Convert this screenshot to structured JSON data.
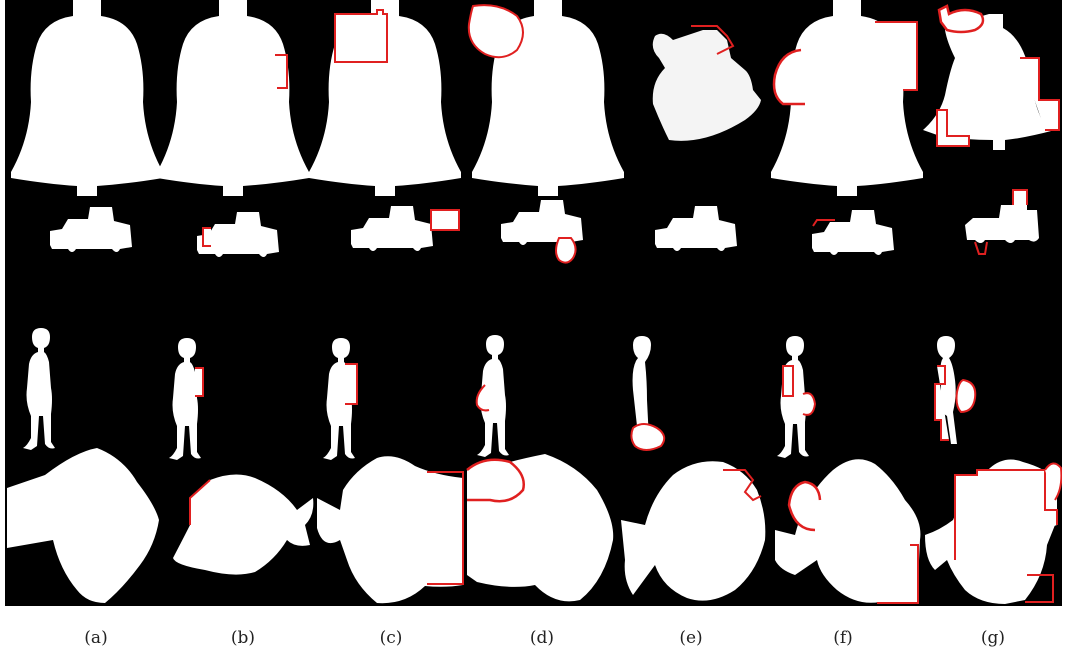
{
  "figure": {
    "background": "#000000",
    "shape_fill": "#ffffff",
    "outline_color": "#e02020",
    "rows": [
      "bell",
      "truck",
      "child",
      "fish"
    ]
  },
  "captions": [
    "(a)",
    "(b)",
    "(c)",
    "(d)",
    "(e)",
    "(f)",
    "(g)"
  ]
}
